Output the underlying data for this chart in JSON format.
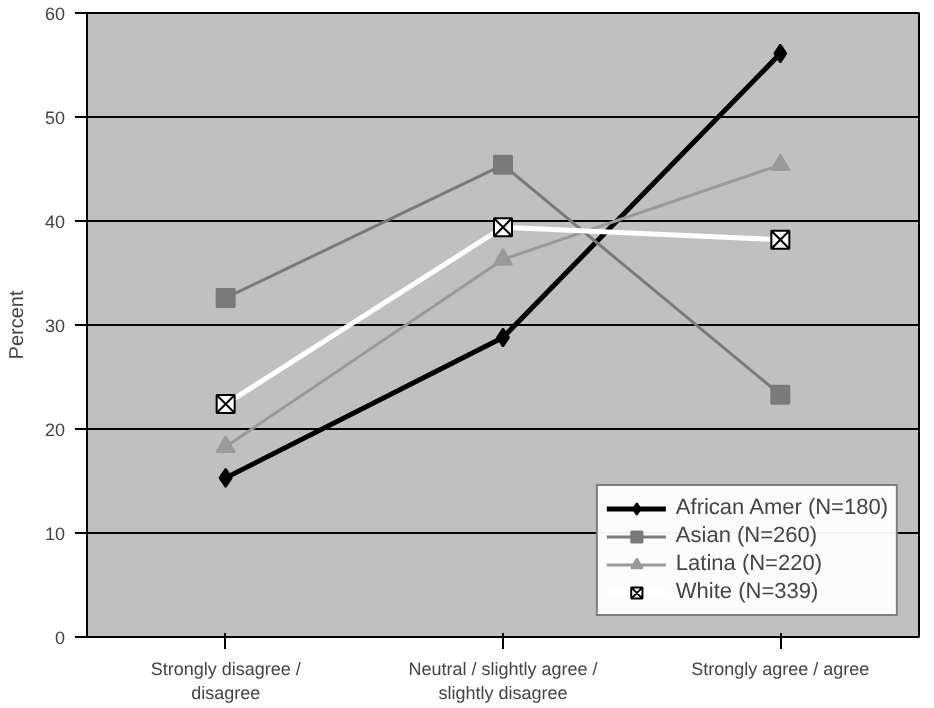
{
  "chart_data": {
    "type": "line",
    "ylabel": "Percent",
    "categories": [
      "Strongly disagree /\ndisagree",
      "Neutral / slightly agree /\nslightly disagree",
      "Strongly agree / agree"
    ],
    "series": [
      {
        "name": "African Amer (N=180)",
        "color": "#000000",
        "marker": "diamond",
        "values": [
          15.3,
          28.8,
          56.1
        ]
      },
      {
        "name": "Asian (N=260)",
        "color": "#7a7a7a",
        "marker": "square",
        "values": [
          32.6,
          45.4,
          23.3
        ]
      },
      {
        "name": "Latina (N=220)",
        "color": "#9a9a9a",
        "marker": "triangle",
        "values": [
          18.3,
          36.3,
          45.4
        ]
      },
      {
        "name": "White (N=339)",
        "color": "#ffffff",
        "marker": "x",
        "values": [
          22.4,
          39.4,
          38.2
        ]
      }
    ],
    "ylim": [
      0,
      60
    ],
    "yticks": [
      0,
      10,
      20,
      30,
      40,
      50,
      60
    ],
    "grid": "y",
    "legend": "bottom right"
  }
}
